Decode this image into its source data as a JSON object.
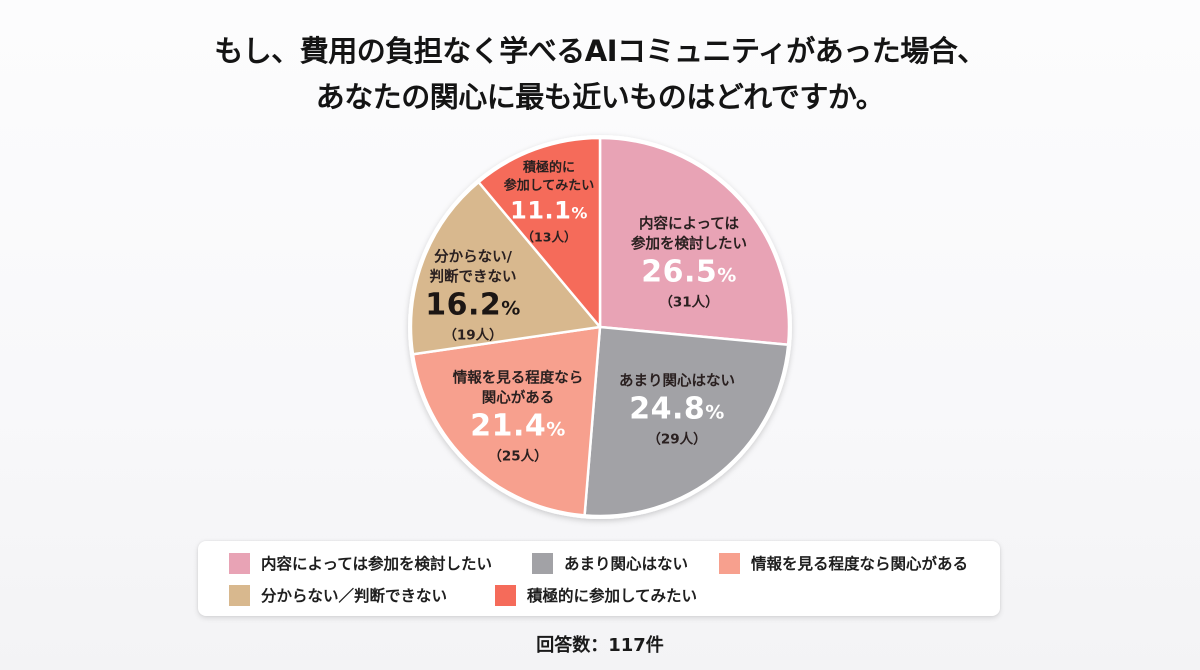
{
  "title": {
    "line1": "もし、費用の負担なく学べるAIコミュニティがあった場合、",
    "line2": "あなたの関心に最も近いものはどれですか。"
  },
  "chart_data": {
    "type": "pie",
    "title": "もし、費用の負担なく学べるAIコミュニティがあった場合、あなたの関心に最も近いものはどれですか。",
    "categories": [
      "内容によっては参加を検討したい",
      "あまり関心はない",
      "情報を見る程度なら関心がある",
      "分からない／判断できない",
      "積極的に参加してみたい"
    ],
    "values": [
      26.5,
      24.8,
      21.4,
      16.2,
      11.1
    ],
    "counts": [
      31,
      29,
      25,
      19,
      13
    ],
    "colors": [
      "#e8a3b5",
      "#a2a2a6",
      "#f7a08e",
      "#d8b88e",
      "#f56b5a"
    ],
    "unit": "%",
    "start_angle": "12 o'clock, clockwise",
    "legend_position": "bottom",
    "total_responses": 117
  },
  "slices": [
    {
      "name_line1": "内容によっては",
      "name_line2": "参加を検討したい",
      "pct": "26.5",
      "unit": "%",
      "count": "（31人）"
    },
    {
      "name_line1": "あまり関心はない",
      "name_line2": "",
      "pct": "24.8",
      "unit": "%",
      "count": "（29人）"
    },
    {
      "name_line1": "情報を見る程度なら",
      "name_line2": "関心がある",
      "pct": "21.4",
      "unit": "%",
      "count": "（25人）"
    },
    {
      "name_line1": "分からない/",
      "name_line2": "判断できない",
      "pct": "16.2",
      "unit": "%",
      "count": "（19人）"
    },
    {
      "name_line1": "積極的に",
      "name_line2": "参加してみたい",
      "pct": "11.1",
      "unit": "%",
      "count": "（13人）"
    }
  ],
  "legend": {
    "items": [
      {
        "label": "内容によっては参加を検討したい",
        "color": "#e8a3b5"
      },
      {
        "label": "あまり関心はない",
        "color": "#a2a2a6"
      },
      {
        "label": "情報を見る程度なら関心がある",
        "color": "#f7a08e"
      },
      {
        "label": "分からない／判断できない",
        "color": "#d8b88e"
      },
      {
        "label": "積極的に参加してみたい",
        "color": "#f56b5a"
      }
    ]
  },
  "footer": {
    "responses": "回答数：117件"
  }
}
